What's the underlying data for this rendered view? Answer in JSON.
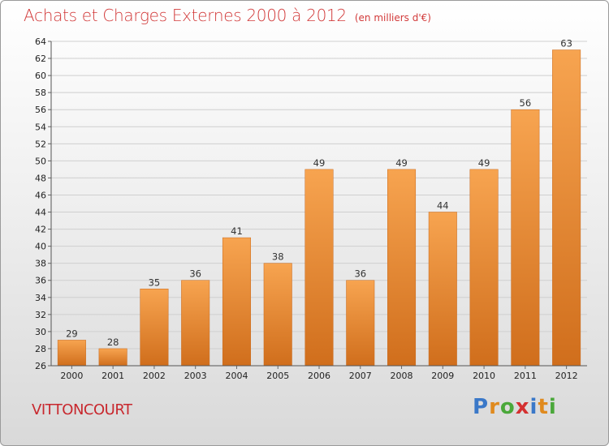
{
  "header": {
    "title": "Achats et Charges Externes 2000 à 2012",
    "subtitle": "(en milliers d'€)"
  },
  "commune": "VITTONCOURT",
  "logo": {
    "letters": [
      "P",
      "r",
      "o",
      "x",
      "i",
      "t",
      "i"
    ],
    "colors": [
      "#3a78c8",
      "#e08a1e",
      "#4aa83a",
      "#d43030",
      "#3a78c8",
      "#e08a1e",
      "#4aa83a"
    ]
  },
  "chart_data": {
    "type": "bar",
    "title": "Achats et Charges Externes 2000 à 2012",
    "categories": [
      "2000",
      "2001",
      "2002",
      "2003",
      "2004",
      "2005",
      "2006",
      "2007",
      "2008",
      "2009",
      "2010",
      "2011",
      "2012"
    ],
    "values": [
      29,
      28,
      35,
      36,
      41,
      38,
      49,
      36,
      49,
      44,
      49,
      56,
      63
    ],
    "value_labels": [
      "29",
      "28",
      "35",
      "36",
      "41",
      "38",
      "49",
      "36",
      "49",
      "44",
      "49",
      "56",
      "63"
    ],
    "ylim": [
      26,
      64
    ],
    "yticks": [
      "26",
      "28",
      "30",
      "32",
      "34",
      "36",
      "38",
      "40",
      "42",
      "44",
      "46",
      "48",
      "50",
      "52",
      "54",
      "56",
      "58",
      "60",
      "62",
      "64"
    ],
    "grid": true,
    "bar_color": "#f0923a",
    "xlabel": "",
    "ylabel": ""
  }
}
